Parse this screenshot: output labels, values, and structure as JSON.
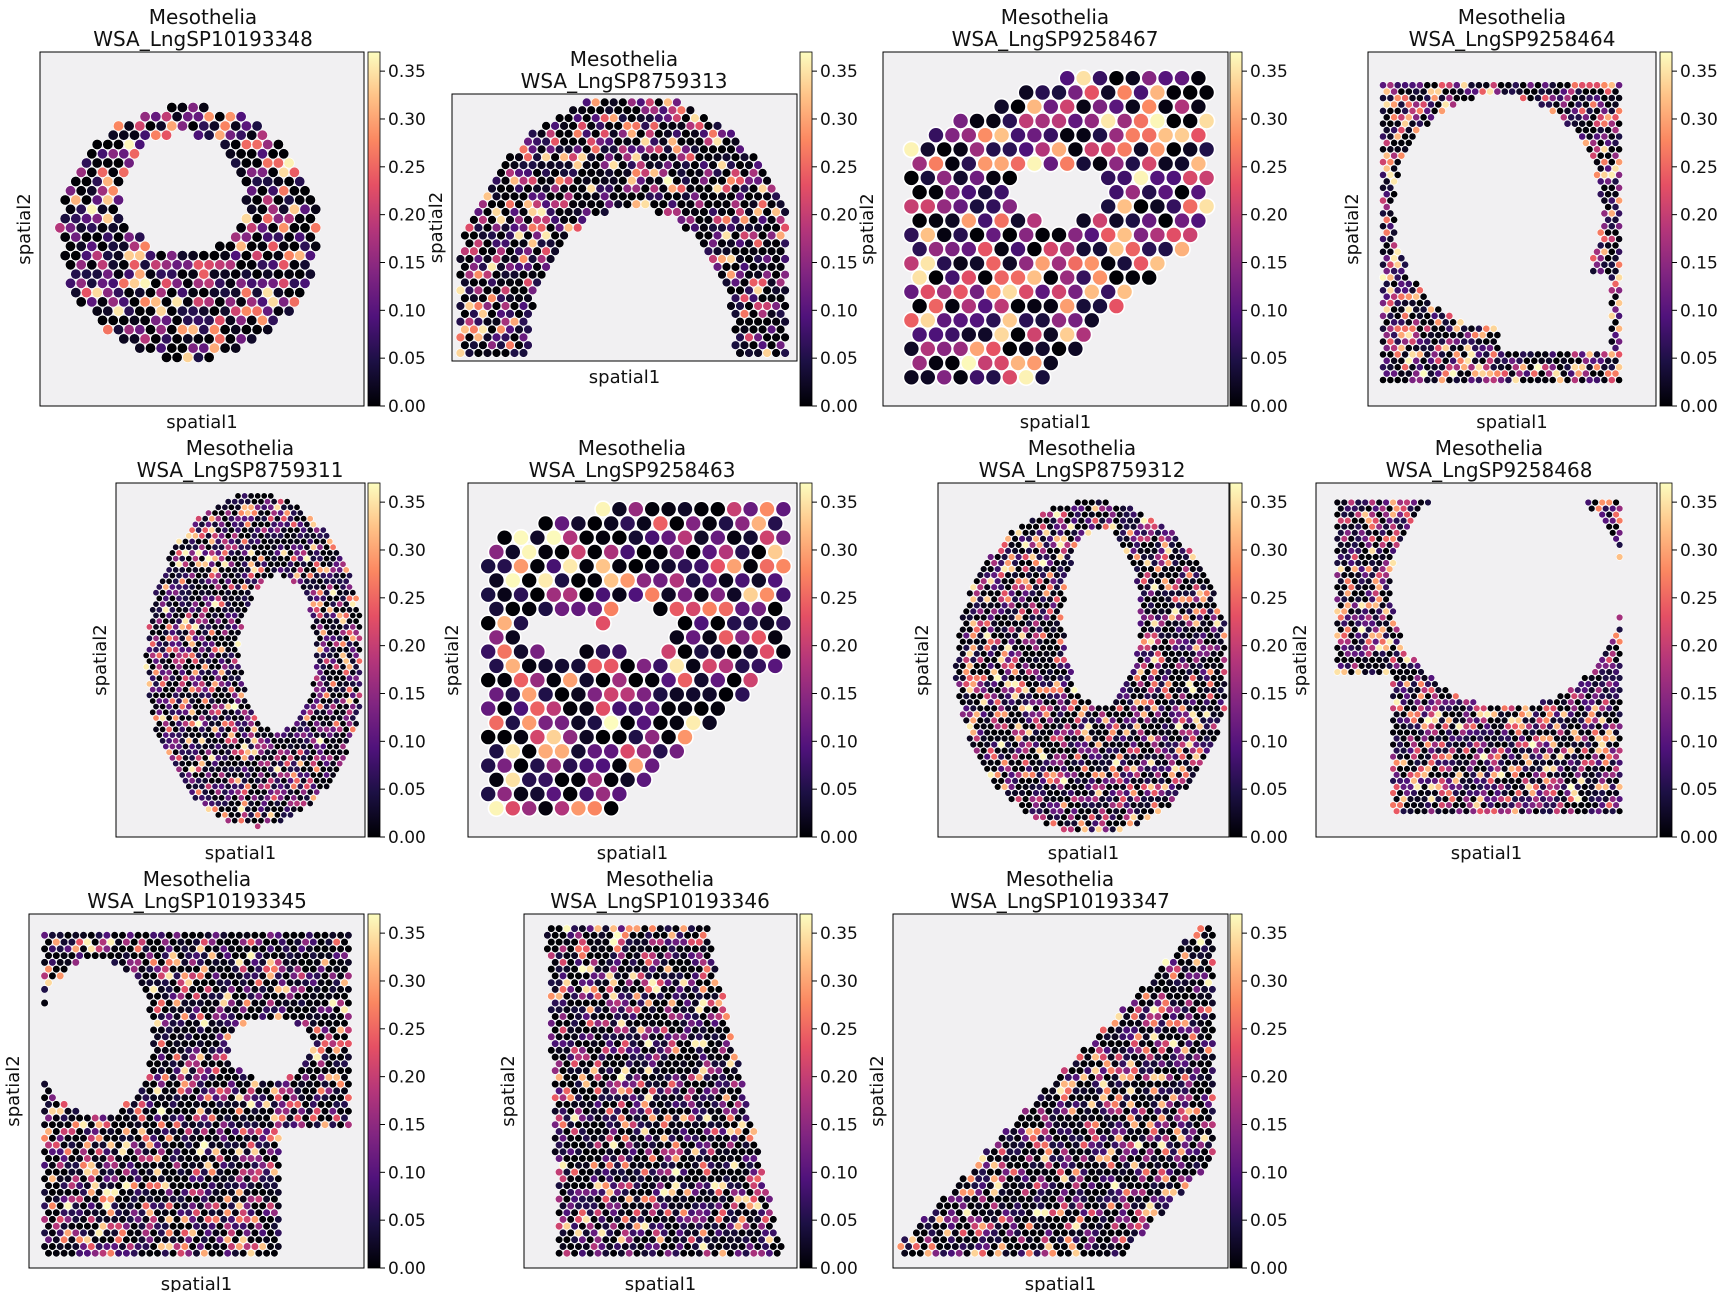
{
  "figure": {
    "colormap": "magma",
    "colormap_stops": [
      "#000004",
      "#1c1044",
      "#4f127b",
      "#812581",
      "#b5367a",
      "#e55064",
      "#fb8761",
      "#fec287",
      "#fcfdbf"
    ],
    "background_tissue": "#f1f0f2",
    "spot_edge": "#ffffff"
  },
  "chart_data": [
    {
      "type": "scatter",
      "title": "Mesothelia",
      "subtitle": "WSA_LngSP10193348",
      "xlabel": "spatial1",
      "ylabel": "spatial2",
      "colorbar": {
        "min": 0.0,
        "max": 0.37,
        "ticks": [
          "0.00",
          "0.05",
          "0.10",
          "0.15",
          "0.20",
          "0.25",
          "0.30",
          "0.35"
        ]
      }
    },
    {
      "type": "scatter",
      "title": "Mesothelia",
      "subtitle": "WSA_LngSP8759313",
      "xlabel": "spatial1",
      "ylabel": "spatial2",
      "colorbar": {
        "min": 0.0,
        "max": 0.37,
        "ticks": [
          "0.00",
          "0.05",
          "0.10",
          "0.15",
          "0.20",
          "0.25",
          "0.30",
          "0.35"
        ]
      }
    },
    {
      "type": "scatter",
      "title": "Mesothelia",
      "subtitle": "WSA_LngSP9258467",
      "xlabel": "spatial1",
      "ylabel": "spatial2",
      "colorbar": {
        "min": 0.0,
        "max": 0.37,
        "ticks": [
          "0.00",
          "0.05",
          "0.10",
          "0.15",
          "0.20",
          "0.25",
          "0.30",
          "0.35"
        ]
      }
    },
    {
      "type": "scatter",
      "title": "Mesothelia",
      "subtitle": "WSA_LngSP9258464",
      "xlabel": "spatial1",
      "ylabel": "spatial2",
      "colorbar": {
        "min": 0.0,
        "max": 0.37,
        "ticks": [
          "0.00",
          "0.05",
          "0.10",
          "0.15",
          "0.20",
          "0.25",
          "0.30",
          "0.35"
        ]
      }
    },
    {
      "type": "scatter",
      "title": "Mesothelia",
      "subtitle": "WSA_LngSP8759311",
      "xlabel": "spatial1",
      "ylabel": "spatial2",
      "colorbar": {
        "min": 0.0,
        "max": 0.37,
        "ticks": [
          "0.00",
          "0.05",
          "0.10",
          "0.15",
          "0.20",
          "0.25",
          "0.30",
          "0.35"
        ]
      }
    },
    {
      "type": "scatter",
      "title": "Mesothelia",
      "subtitle": "WSA_LngSP9258463",
      "xlabel": "spatial1",
      "ylabel": "spatial2",
      "colorbar": {
        "min": 0.0,
        "max": 0.37,
        "ticks": [
          "0.00",
          "0.05",
          "0.10",
          "0.15",
          "0.20",
          "0.25",
          "0.30",
          "0.35"
        ]
      }
    },
    {
      "type": "scatter",
      "title": "Mesothelia",
      "subtitle": "WSA_LngSP8759312",
      "xlabel": "spatial1",
      "ylabel": "spatial2",
      "colorbar": {
        "min": 0.0,
        "max": 0.37,
        "ticks": [
          "0.00",
          "0.05",
          "0.10",
          "0.15",
          "0.20",
          "0.25",
          "0.30",
          "0.35"
        ]
      }
    },
    {
      "type": "scatter",
      "title": "Mesothelia",
      "subtitle": "WSA_LngSP9258468",
      "xlabel": "spatial1",
      "ylabel": "spatial2",
      "colorbar": {
        "min": 0.0,
        "max": 0.37,
        "ticks": [
          "0.00",
          "0.05",
          "0.10",
          "0.15",
          "0.20",
          "0.25",
          "0.30",
          "0.35"
        ]
      }
    },
    {
      "type": "scatter",
      "title": "Mesothelia",
      "subtitle": "WSA_LngSP10193345",
      "xlabel": "spatial1",
      "ylabel": "spatial2",
      "colorbar": {
        "min": 0.0,
        "max": 0.37,
        "ticks": [
          "0.00",
          "0.05",
          "0.10",
          "0.15",
          "0.20",
          "0.25",
          "0.30",
          "0.35"
        ]
      }
    },
    {
      "type": "scatter",
      "title": "Mesothelia",
      "subtitle": "WSA_LngSP10193346",
      "xlabel": "spatial1",
      "ylabel": "spatial2",
      "colorbar": {
        "min": 0.0,
        "max": 0.37,
        "ticks": [
          "0.00",
          "0.05",
          "0.10",
          "0.15",
          "0.20",
          "0.25",
          "0.30",
          "0.35"
        ]
      }
    },
    {
      "type": "scatter",
      "title": "Mesothelia",
      "subtitle": "WSA_LngSP10193347",
      "xlabel": "spatial1",
      "ylabel": "spatial2",
      "colorbar": {
        "min": 0.0,
        "max": 0.37,
        "ticks": [
          "0.00",
          "0.05",
          "0.10",
          "0.15",
          "0.20",
          "0.25",
          "0.30",
          "0.35"
        ]
      }
    }
  ]
}
